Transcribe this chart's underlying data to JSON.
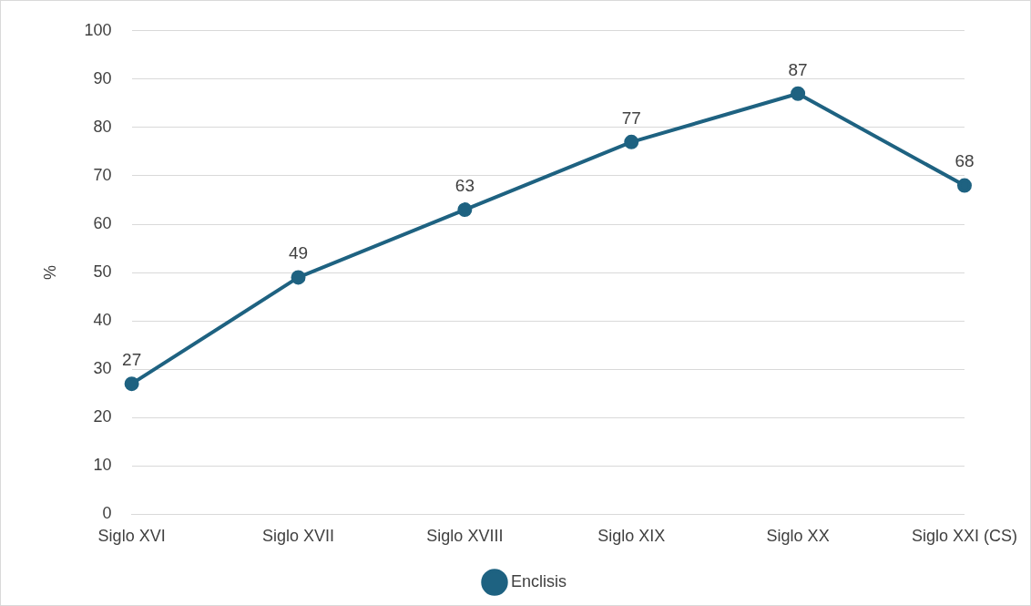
{
  "chart_data": {
    "type": "line",
    "ylabel": "%",
    "categories": [
      "Siglo XVI",
      "Siglo XVII",
      "Siglo XVIII",
      "Siglo XIX",
      "Siglo XX",
      "Siglo XXI (CS)"
    ],
    "series": [
      {
        "name": "Enclisis",
        "color": "#1e6281",
        "values": [
          27,
          49,
          63,
          77,
          87,
          68
        ]
      }
    ],
    "ylim": [
      0,
      100
    ],
    "yticks": [
      0,
      10,
      20,
      30,
      40,
      50,
      60,
      70,
      80,
      90,
      100
    ],
    "grid": "y",
    "legend": "bottom",
    "marker": "circle",
    "line_style": "solid",
    "data_labels": true
  }
}
